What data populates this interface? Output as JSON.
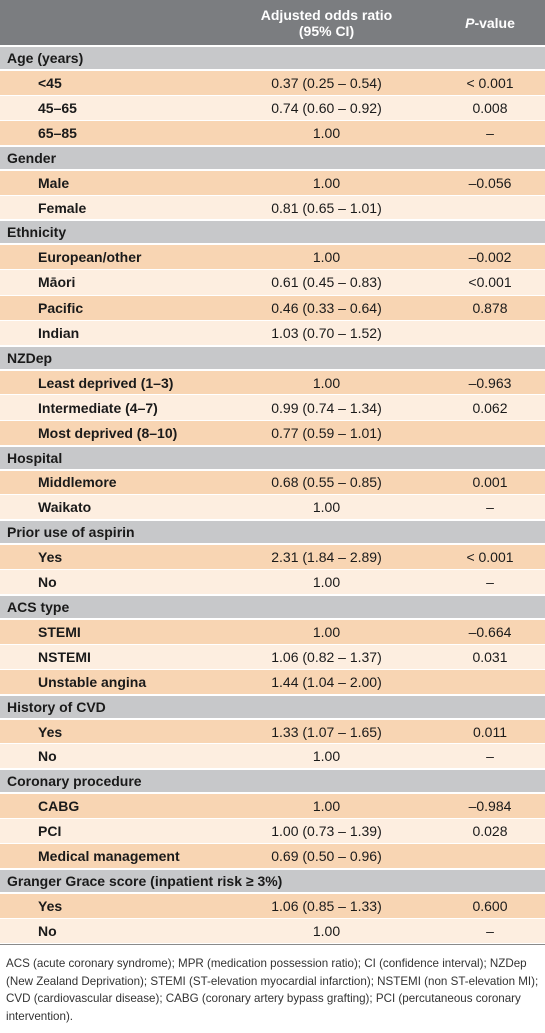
{
  "header": {
    "col1": "",
    "col2_line1": "Adjusted odds ratio",
    "col2_line2": "(95% CI)",
    "col3_italic": "P",
    "col3_rest": "-value"
  },
  "sections": [
    {
      "title": "Age (years)",
      "rows": [
        {
          "label": "<45",
          "or": "0.37 (0.25 – 0.54)",
          "p": "< 0.001"
        },
        {
          "label": "45–65",
          "or": "0.74 (0.60 – 0.92)",
          "p": "0.008"
        },
        {
          "label": "65–85",
          "or": "1.00",
          "p": "–"
        }
      ]
    },
    {
      "title": "Gender",
      "rows": [
        {
          "label": "Male",
          "or": "1.00",
          "p": "–0.056"
        },
        {
          "label": "Female",
          "or": "0.81 (0.65 – 1.01)",
          "p": ""
        }
      ]
    },
    {
      "title": "Ethnicity",
      "rows": [
        {
          "label": "European/other",
          "or": "1.00",
          "p": "–0.002"
        },
        {
          "label": "Māori",
          "or": "0.61 (0.45 – 0.83)",
          "p": "<0.001"
        },
        {
          "label": "Pacific",
          "or": "0.46 (0.33 – 0.64)",
          "p": "0.878"
        },
        {
          "label": "Indian",
          "or": "1.03 (0.70 – 1.52)",
          "p": ""
        }
      ]
    },
    {
      "title": "NZDep",
      "rows": [
        {
          "label": "Least deprived (1–3)",
          "or": "1.00",
          "p": "–0.963"
        },
        {
          "label": "Intermediate (4–7)",
          "or": "0.99 (0.74 – 1.34)",
          "p": "0.062"
        },
        {
          "label": "Most deprived (8–10)",
          "or": "0.77 (0.59 – 1.01)",
          "p": ""
        }
      ]
    },
    {
      "title": "Hospital",
      "rows": [
        {
          "label": "Middlemore",
          "or": "0.68 (0.55 – 0.85)",
          "p": "0.001"
        },
        {
          "label": "Waikato",
          "or": "1.00",
          "p": "–"
        }
      ]
    },
    {
      "title": "Prior use of aspirin",
      "rows": [
        {
          "label": "Yes",
          "or": "2.31 (1.84 – 2.89)",
          "p": "< 0.001"
        },
        {
          "label": "No",
          "or": "1.00",
          "p": "–"
        }
      ]
    },
    {
      "title": "ACS type",
      "rows": [
        {
          "label": "STEMI",
          "or": "1.00",
          "p": "–0.664"
        },
        {
          "label": "NSTEMI",
          "or": "1.06 (0.82 – 1.37)",
          "p": "0.031"
        },
        {
          "label": "Unstable angina",
          "or": "1.44 (1.04 – 2.00)",
          "p": ""
        }
      ]
    },
    {
      "title": "History of CVD",
      "rows": [
        {
          "label": "Yes",
          "or": "1.33 (1.07 – 1.65)",
          "p": "0.011"
        },
        {
          "label": "No",
          "or": "1.00",
          "p": "–"
        }
      ]
    },
    {
      "title": "Coronary procedure",
      "rows": [
        {
          "label": "CABG",
          "or": "1.00",
          "p": "–0.984"
        },
        {
          "label": "PCI",
          "or": "1.00 (0.73 – 1.39)",
          "p": "0.028"
        },
        {
          "label": "Medical management",
          "or": "0.69 (0.50 – 0.96)",
          "p": ""
        }
      ]
    },
    {
      "title": "Granger Grace score (inpatient risk ≥ 3%)",
      "rows": [
        {
          "label": "Yes",
          "or": "1.06 (0.85 – 1.33)",
          "p": "0.600"
        },
        {
          "label": "No",
          "or": "1.00",
          "p": "–"
        }
      ]
    }
  ],
  "footnote": "ACS (acute coronary syndrome); MPR (medication possession ratio); CI (confidence interval); NZDep (New Zealand Deprivation); STEMI (ST-elevation myocardial infarction); NSTEMI (non ST-elevation MI); CVD (cardiovascular disease); CABG (coronary artery bypass grafting); PCI (percutaneous coronary intervention).",
  "colors": {
    "header_bg": "#7b7d80",
    "section_bg": "#c7c8ca",
    "row_odd_bg": "#f8d5b3",
    "row_even_bg": "#fdeee0"
  }
}
